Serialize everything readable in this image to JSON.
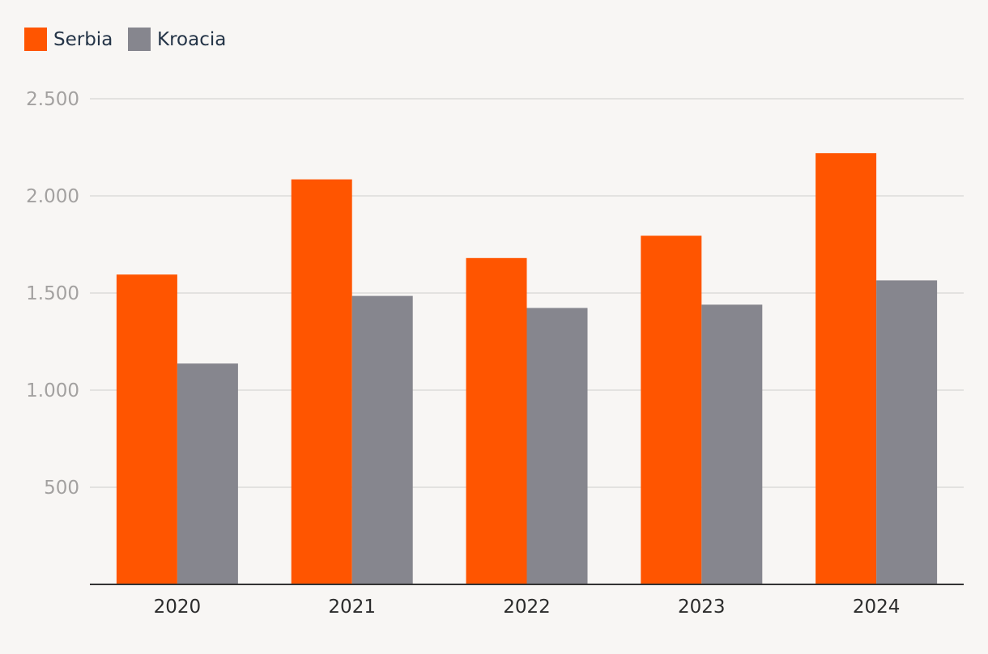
{
  "chart_data": {
    "type": "bar",
    "categories": [
      "2020",
      "2021",
      "2022",
      "2023",
      "2024"
    ],
    "series": [
      {
        "name": "Serbia",
        "color": "#ff5500",
        "values": [
          1595,
          2085,
          1680,
          1795,
          2220
        ]
      },
      {
        "name": "Kroacia",
        "color": "#86868e",
        "values": [
          1137,
          1485,
          1423,
          1440,
          1565
        ]
      }
    ],
    "ylim": [
      0,
      2500
    ],
    "yticks": [
      500,
      1000,
      1500,
      2000,
      2500
    ],
    "ytick_labels": [
      "500",
      "1.000",
      "1.500",
      "2.000",
      "2.500"
    ],
    "grid": true,
    "legend_position": "top-left",
    "title": "",
    "xlabel": "",
    "ylabel": ""
  }
}
